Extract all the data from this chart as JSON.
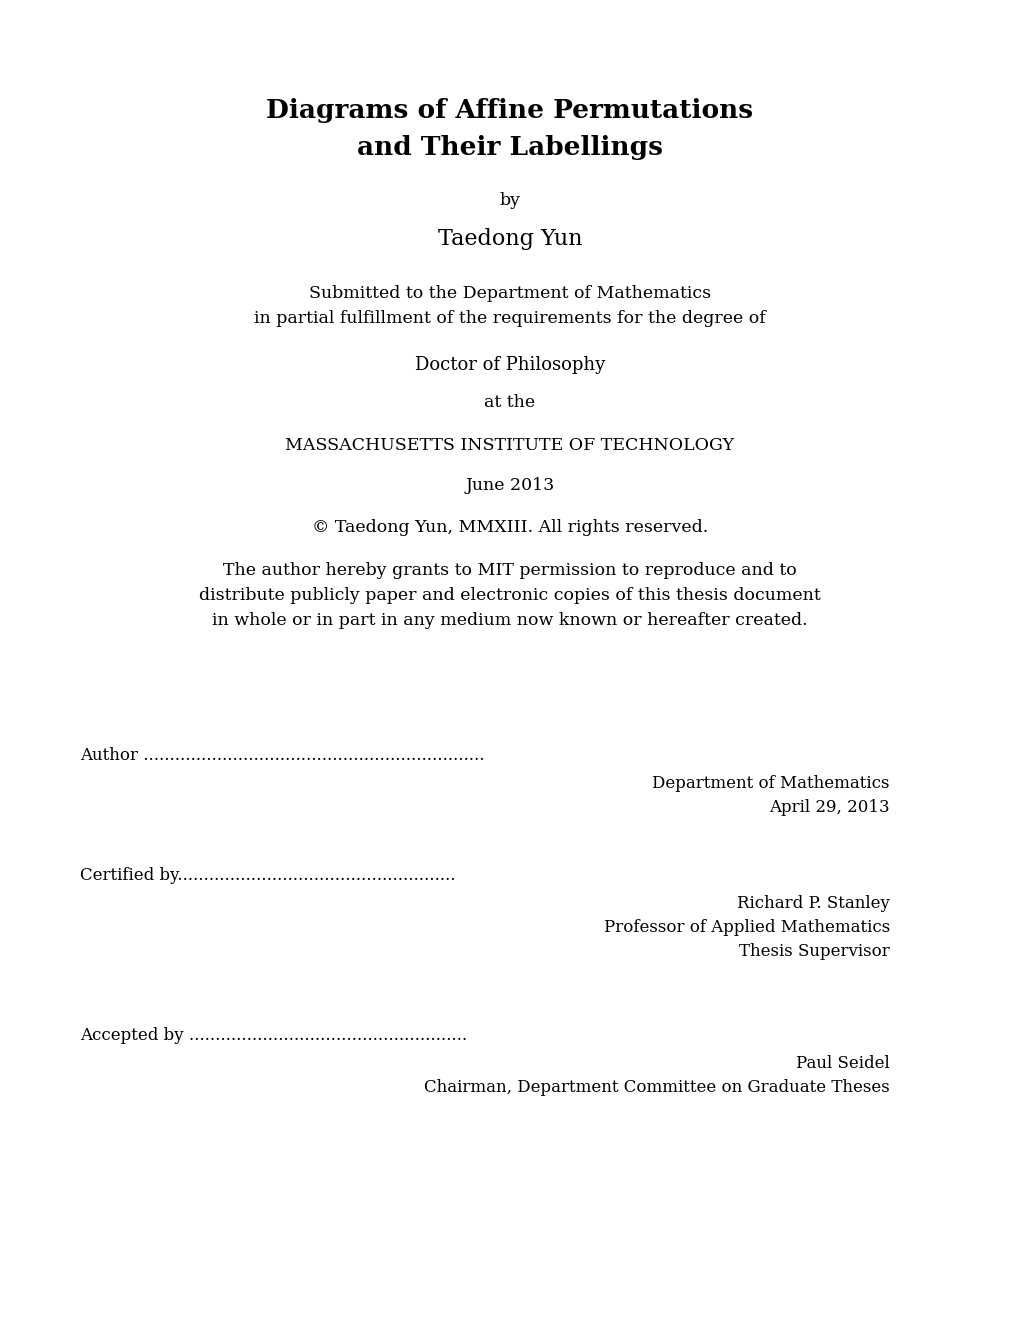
{
  "bg_color": "#ffffff",
  "title_line1": "Diagrams of Affine Permutations",
  "title_line2": "and Their Labellings",
  "by": "by",
  "author_name": "Taedong Yun",
  "submitted_line1": "Submitted to the Department of Mathematics",
  "submitted_line2": "in partial fulfillment of the requirements for the degree of",
  "degree": "Doctor of Philosophy",
  "at_the": "at the",
  "institute": "MASSACHUSETTS INSTITUTE OF TECHNOLOGY",
  "date": "June 2013",
  "copyright": "© Taedong Yun, MMXIII. All rights reserved.",
  "permission_line1": "The author hereby grants to MIT permission to reproduce and to",
  "permission_line2": "distribute publicly paper and electronic copies of this thesis document",
  "permission_line3": "in whole or in part in any medium now known or hereafter created.",
  "author_label": "Author",
  "author_dots": ".................................................................",
  "author_dept": "Department of Mathematics",
  "author_date": "April 29, 2013",
  "certified_label": "Certified by",
  "certified_dots": ".....................................................",
  "certified_name": "Richard P. Stanley",
  "certified_title1": "Professor of Applied Mathematics",
  "certified_title2": "Thesis Supervisor",
  "accepted_label": "Accepted by",
  "accepted_dots": ".....................................................",
  "accepted_name": "Paul Seidel",
  "accepted_title": "Chairman, Department Committee on Graduate Theses",
  "title_fontsize": 19,
  "body_fontsize": 12.5,
  "name_fontsize": 16,
  "sig_fontsize": 12
}
